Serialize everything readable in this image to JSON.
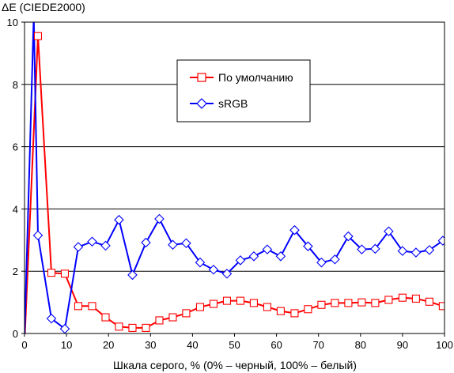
{
  "chart_data": {
    "type": "line",
    "title": "",
    "ylabel": "ΔE (CIEDE2000)",
    "xlabel": "Шкала серого, % (0% – черный, 100% – белый)",
    "xlim": [
      0,
      100
    ],
    "ylim": [
      0,
      10
    ],
    "xticks": [
      0,
      10,
      20,
      30,
      40,
      50,
      60,
      70,
      80,
      90,
      100
    ],
    "yticks": [
      0,
      2,
      4,
      6,
      8,
      10
    ],
    "grid": "horizontal",
    "legend_position": "upper-center",
    "series": [
      {
        "name": "По умолчанию",
        "color": "#ff0000",
        "marker": "square",
        "x": [
          0,
          3.2,
          6.4,
          9.6,
          12.8,
          16.1,
          19.3,
          22.5,
          25.7,
          28.9,
          32.1,
          35.3,
          38.5,
          41.8,
          45.0,
          48.2,
          51.4,
          54.6,
          57.8,
          61.0,
          64.3,
          67.5,
          70.7,
          73.9,
          77.1,
          80.3,
          83.5,
          86.7,
          90.0,
          93.2,
          96.4,
          99.6
        ],
        "y": [
          -0.3,
          9.55,
          1.95,
          1.92,
          0.88,
          0.88,
          0.52,
          0.22,
          0.18,
          0.18,
          0.42,
          0.52,
          0.65,
          0.85,
          0.95,
          1.05,
          1.05,
          0.98,
          0.85,
          0.72,
          0.65,
          0.78,
          0.92,
          0.98,
          0.98,
          1.0,
          0.98,
          1.08,
          1.15,
          1.12,
          1.02,
          0.88
        ]
      },
      {
        "name": "sRGB",
        "color": "#0000ff",
        "marker": "diamond",
        "x": [
          0,
          2.2,
          3.2,
          6.4,
          9.6,
          12.8,
          16.1,
          19.3,
          22.5,
          25.7,
          28.9,
          32.1,
          35.3,
          38.5,
          41.8,
          45.0,
          48.2,
          51.4,
          54.6,
          57.8,
          61.0,
          64.3,
          67.5,
          70.7,
          73.9,
          77.1,
          80.3,
          83.5,
          86.7,
          90.0,
          93.2,
          96.4,
          99.6
        ],
        "y": [
          -0.1,
          10.2,
          3.15,
          0.48,
          0.15,
          2.78,
          2.95,
          2.82,
          3.65,
          1.88,
          2.92,
          3.68,
          2.85,
          2.9,
          2.28,
          2.05,
          1.92,
          2.35,
          2.48,
          2.7,
          2.48,
          3.32,
          2.8,
          2.28,
          2.38,
          3.12,
          2.7,
          2.72,
          3.28,
          2.65,
          2.6,
          2.68,
          2.98
        ]
      }
    ]
  }
}
